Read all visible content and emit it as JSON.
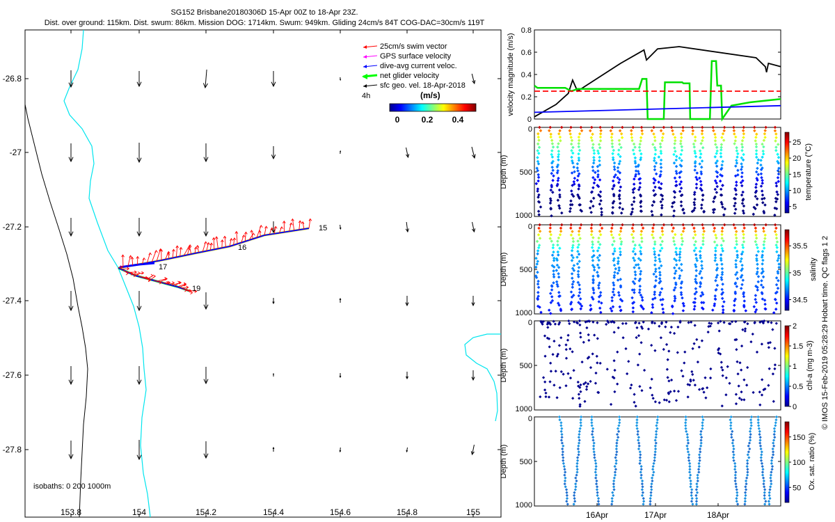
{
  "title": {
    "line1": "SG152 Brisbane20180306D 15-Apr 00Z to 18-Apr 23Z.",
    "line2": "Dist. over ground: 115km. Dist. swum: 86km. Mission DOG: 1714km. Swum: 949km. Gliding 24cm/s 84T COG-DAC=30cm/s 119T"
  },
  "colors": {
    "swim_vector": "#ff0000",
    "gps_velocity": "#ff00ff",
    "dive_avg": "#0000ff",
    "net_glider": "#00ff00",
    "sfc_geo": "#000000",
    "coastline_cyan": "#00e5ee",
    "isobath": "#000000",
    "marker_dark": "#00008f",
    "marker_light": "#1e9be6"
  },
  "map": {
    "legend": {
      "swim": "25cm/s swim vector",
      "gps": "GPS surface velocity",
      "dac": "dive-avg current veloc.",
      "net": "net glider velocity",
      "sfc": "sfc geo. vel. 18-Apr-2018",
      "interval": "4h",
      "units": "(m/s)"
    },
    "colorbar_ticks": [
      "0",
      "0.2",
      "0.4"
    ],
    "isobaths_label": "isobaths: 0   200  1000m",
    "x_ticks": [
      "153.8",
      "154",
      "154.2",
      "154.4",
      "154.6",
      "154.8",
      "155"
    ],
    "y_ticks": [
      "-26.8",
      "-27",
      "-27.2",
      "-27.4",
      "-27.6",
      "-27.8"
    ],
    "day_labels": [
      "15",
      "16",
      "17",
      "19"
    ]
  },
  "chart_data": [
    {
      "type": "line",
      "title": "",
      "ylabel": "velocity magnitude (m/s)",
      "ylim": [
        0,
        0.8
      ],
      "yticks": [
        "0",
        "0.2",
        "0.4",
        "0.6",
        "0.8"
      ],
      "x_range_days": [
        15,
        19
      ],
      "series": [
        {
          "name": "sfc geo. velocity",
          "color": "#000000",
          "x": [
            15.0,
            15.35,
            15.55,
            15.62,
            15.7,
            16.4,
            16.78,
            16.82,
            17.0,
            17.35,
            18.6,
            18.75,
            18.77,
            18.8,
            19.0
          ],
          "y": [
            0.02,
            0.13,
            0.23,
            0.35,
            0.25,
            0.5,
            0.62,
            0.53,
            0.63,
            0.65,
            0.55,
            0.47,
            0.42,
            0.5,
            0.47
          ]
        },
        {
          "name": "net glider velocity",
          "color": "#00e000",
          "x": [
            15.0,
            15.05,
            15.5,
            15.6,
            15.7,
            16.0,
            16.5,
            16.7,
            16.75,
            16.82,
            16.84,
            17.1,
            17.12,
            17.4,
            17.42,
            17.52,
            17.53,
            17.85,
            17.88,
            17.95,
            17.97,
            18.03,
            18.05,
            18.2,
            18.5,
            19.0
          ],
          "y": [
            0.3,
            0.28,
            0.28,
            0.25,
            0.27,
            0.27,
            0.27,
            0.27,
            0.36,
            0.36,
            0.0,
            0.0,
            0.33,
            0.33,
            0.32,
            0.32,
            0.0,
            0.0,
            0.52,
            0.52,
            0.3,
            0.3,
            0.0,
            0.12,
            0.15,
            0.18
          ]
        },
        {
          "name": "25cm/s swim vector",
          "color": "#ff0000",
          "dashed": true,
          "x": [
            15.0,
            19.0
          ],
          "y": [
            0.25,
            0.25
          ]
        },
        {
          "name": "dive-avg current veloc.",
          "color": "#0000ff",
          "x": [
            15.0,
            19.0
          ],
          "y": [
            0.06,
            0.12
          ]
        }
      ]
    },
    {
      "type": "scatter",
      "ylabel": "Depth (m)",
      "clabel": "temperature (°C)",
      "ylim": [
        0,
        1000
      ],
      "yticks": [
        "0",
        "500",
        "1000"
      ],
      "cticks": [
        "5",
        "10",
        "15",
        "20",
        "25"
      ],
      "crange": [
        3,
        28
      ],
      "colormap": "jet",
      "dives": 24,
      "max_depth": 1000
    },
    {
      "type": "scatter",
      "ylabel": "Depth (m)",
      "clabel": "salinity",
      "ylim": [
        0,
        1000
      ],
      "yticks": [
        "0",
        "500",
        "1000"
      ],
      "cticks": [
        "34.5",
        "35",
        "35.5"
      ],
      "crange": [
        34.3,
        35.8
      ],
      "colormap": "jet",
      "dives": 24,
      "max_depth": 1000
    },
    {
      "type": "scatter",
      "ylabel": "Depth (m)",
      "clabel": "chl-a (mg m-3)",
      "ylim": [
        0,
        1000
      ],
      "yticks": [
        "0",
        "500",
        "1000"
      ],
      "cticks": [
        "0",
        "0.5",
        "1",
        "1.5",
        "2"
      ],
      "crange": [
        0,
        2
      ],
      "colormap": "jet",
      "dives": 24,
      "max_depth": 1000
    },
    {
      "type": "scatter",
      "ylabel": "Depth (m)",
      "clabel": "Ox. sat. ratio (%)",
      "ylim": [
        0,
        1000
      ],
      "yticks": [
        "0",
        "500",
        "1000"
      ],
      "cticks": [
        "50",
        "100",
        "150"
      ],
      "crange": [
        20,
        180
      ],
      "colormap": "jet",
      "xticks": [
        "16Apr",
        "17Apr",
        "18Apr"
      ],
      "dives": 14,
      "max_depth": 1000
    }
  ],
  "side_note": "© IMOS 15-Feb-2019 05:28:29 Hobart time. QC flags 1  2"
}
